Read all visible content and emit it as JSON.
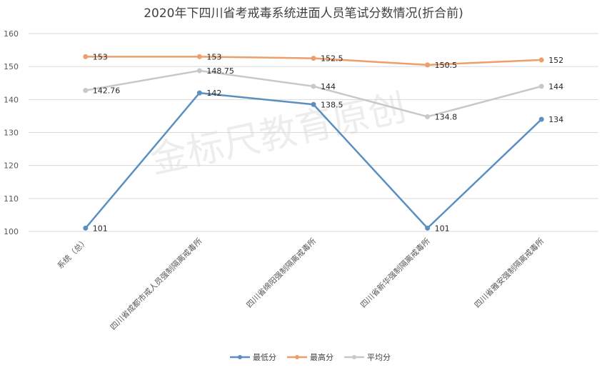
{
  "chart_data": {
    "type": "line",
    "title": "2020年下四川省考戒毒系统进面人员笔试分数情况(折合前)",
    "watermark": "金标尺教育原创",
    "categories": [
      "系统（总）",
      "四川省成都市戒人员强制隔离戒毒所",
      "四川省绵阳强制隔离戒毒所",
      "四川省新华强制隔离戒毒所",
      "四川省雅安强制隔离戒毒所"
    ],
    "ylim": [
      100,
      160
    ],
    "yticks": [
      100,
      110,
      120,
      130,
      140,
      150,
      160
    ],
    "grid": true,
    "legend_position": "bottom",
    "series": [
      {
        "name": "最低分",
        "color": "#5b8fc0",
        "values": [
          101,
          142,
          138.5,
          101,
          134
        ],
        "labels": [
          "101",
          "142",
          "138.5",
          "101",
          "134"
        ]
      },
      {
        "name": "最高分",
        "color": "#ed9f6b",
        "values": [
          153,
          153,
          152.5,
          150.5,
          152
        ],
        "labels": [
          "153",
          "153",
          "152.5",
          "150.5",
          "152"
        ]
      },
      {
        "name": "平均分",
        "color": "#c8c8c8",
        "values": [
          142.76,
          148.75,
          144,
          134.8,
          144
        ],
        "labels": [
          "142.76",
          "148.75",
          "144",
          "134.8",
          "144"
        ]
      }
    ]
  }
}
